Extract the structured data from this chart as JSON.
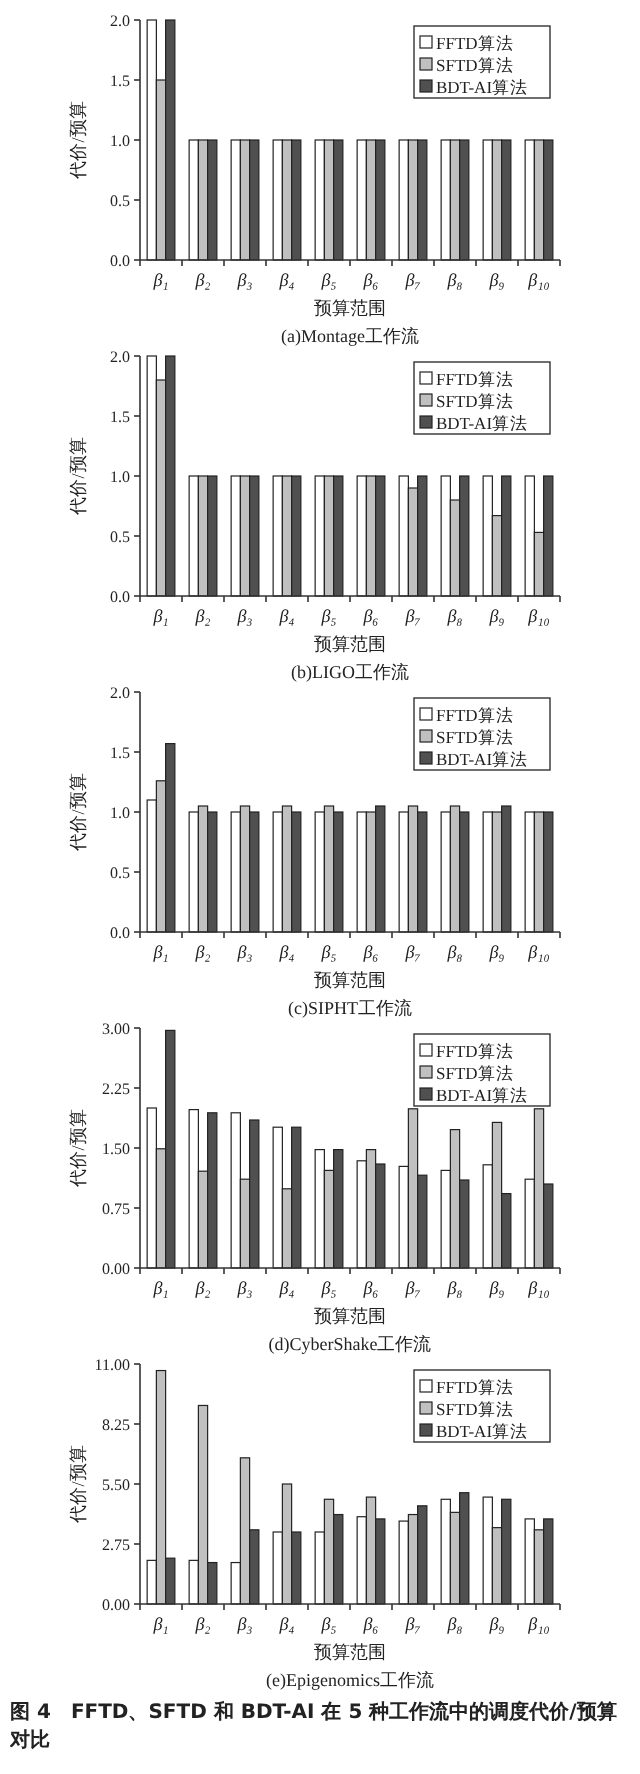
{
  "chart_data": [
    {
      "type": "bar",
      "title": "(a)Montage工作流",
      "xlabel": "预算范围",
      "ylabel": "代价/预算",
      "legend": "top right",
      "categories": [
        "β₁",
        "β₂",
        "β₃",
        "β₄",
        "β₅",
        "β₆",
        "β₇",
        "β₈",
        "β₉",
        "β₁₀"
      ],
      "ylim": [
        0,
        2
      ],
      "yticks": [
        {
          "value": 0,
          "label": "0.0"
        },
        {
          "value": 0.5,
          "label": "0.5"
        },
        {
          "value": 1,
          "label": "1.0"
        },
        {
          "value": 1.5,
          "label": "1.5"
        },
        {
          "value": 2,
          "label": "2.0"
        }
      ],
      "series": [
        {
          "name": "FFTD算法",
          "color": "#ffffff",
          "values": [
            2,
            1,
            1,
            1,
            1,
            1,
            1,
            1,
            1,
            1
          ]
        },
        {
          "name": "SFTD算法",
          "color": "#c0c0c0",
          "values": [
            1.5,
            1,
            1,
            1,
            1,
            1,
            1,
            1,
            1,
            1
          ]
        },
        {
          "name": "BDT-AI算法",
          "color": "#505050",
          "values": [
            2,
            1,
            1,
            1,
            1,
            1,
            1,
            1,
            1,
            1
          ]
        }
      ]
    },
    {
      "type": "bar",
      "title": "(b)LIGO工作流",
      "xlabel": "预算范围",
      "ylabel": "代价/预算",
      "legend": "top right",
      "categories": [
        "β₁",
        "β₂",
        "β₃",
        "β₄",
        "β₅",
        "β₆",
        "β₇",
        "β₈",
        "β₉",
        "β₁₀"
      ],
      "ylim": [
        0,
        2
      ],
      "yticks": [
        {
          "value": 0,
          "label": "0.0"
        },
        {
          "value": 0.5,
          "label": "0.5"
        },
        {
          "value": 1,
          "label": "1.0"
        },
        {
          "value": 1.5,
          "label": "1.5"
        },
        {
          "value": 2,
          "label": "2.0"
        }
      ],
      "series": [
        {
          "name": "FFTD算法",
          "color": "#ffffff",
          "values": [
            2,
            1,
            1,
            1,
            1,
            1,
            1,
            1,
            1,
            1
          ]
        },
        {
          "name": "SFTD算法",
          "color": "#c0c0c0",
          "values": [
            1.8,
            1,
            1,
            1,
            1,
            1,
            0.9,
            0.8,
            0.67,
            0.53
          ]
        },
        {
          "name": "BDT-AI算法",
          "color": "#505050",
          "values": [
            2,
            1,
            1,
            1,
            1,
            1,
            1,
            1,
            1,
            1
          ]
        }
      ]
    },
    {
      "type": "bar",
      "title": "(c)SIPHT工作流",
      "xlabel": "预算范围",
      "ylabel": "代价/预算",
      "legend": "top right",
      "categories": [
        "β₁",
        "β₂",
        "β₃",
        "β₄",
        "β₅",
        "β₆",
        "β₇",
        "β₈",
        "β₉",
        "β₁₀"
      ],
      "ylim": [
        0,
        2
      ],
      "yticks": [
        {
          "value": 0,
          "label": "0.0"
        },
        {
          "value": 0.5,
          "label": "0.5"
        },
        {
          "value": 1,
          "label": "1.0"
        },
        {
          "value": 1.5,
          "label": "1.5"
        },
        {
          "value": 2,
          "label": "2.0"
        }
      ],
      "series": [
        {
          "name": "FFTD算法",
          "color": "#ffffff",
          "values": [
            1.1,
            1,
            1,
            1,
            1,
            1,
            1,
            1,
            1,
            1
          ]
        },
        {
          "name": "SFTD算法",
          "color": "#c0c0c0",
          "values": [
            1.26,
            1.05,
            1.05,
            1.05,
            1.05,
            1,
            1.05,
            1.05,
            1,
            1
          ]
        },
        {
          "name": "BDT-AI算法",
          "color": "#505050",
          "values": [
            1.57,
            1,
            1,
            1,
            1,
            1.05,
            1,
            1,
            1.05,
            1
          ]
        }
      ]
    },
    {
      "type": "bar",
      "title": "(d)CyberShake工作流",
      "xlabel": "预算范围",
      "ylabel": "代价/预算",
      "legend": "top right",
      "categories": [
        "β₁",
        "β₂",
        "β₃",
        "β₄",
        "β₅",
        "β₆",
        "β₇",
        "β₈",
        "β₉",
        "β₁₀"
      ],
      "ylim": [
        0,
        3
      ],
      "yticks": [
        {
          "value": 0,
          "label": "0.00"
        },
        {
          "value": 0.75,
          "label": "0.75"
        },
        {
          "value": 1.5,
          "label": "1.50"
        },
        {
          "value": 2.25,
          "label": "2.25"
        },
        {
          "value": 3,
          "label": "3.00"
        }
      ],
      "series": [
        {
          "name": "FFTD算法",
          "color": "#ffffff",
          "values": [
            2.0,
            1.98,
            1.94,
            1.76,
            1.48,
            1.34,
            1.27,
            1.22,
            1.29,
            1.11
          ]
        },
        {
          "name": "SFTD算法",
          "color": "#c0c0c0",
          "values": [
            1.49,
            1.21,
            1.11,
            0.99,
            1.22,
            1.48,
            1.99,
            1.73,
            1.82,
            1.99
          ]
        },
        {
          "name": "BDT-AI算法",
          "color": "#505050",
          "values": [
            2.97,
            1.94,
            1.85,
            1.76,
            1.48,
            1.3,
            1.16,
            1.1,
            0.93,
            1.05
          ]
        }
      ]
    },
    {
      "type": "bar",
      "title": "(e)Epigenomics工作流",
      "xlabel": "预算范围",
      "ylabel": "代价/预算",
      "legend": "top right",
      "categories": [
        "β₁",
        "β₂",
        "β₃",
        "β₄",
        "β₅",
        "β₆",
        "β₇",
        "β₈",
        "β₉",
        "β₁₀"
      ],
      "ylim": [
        0,
        11
      ],
      "yticks": [
        {
          "value": 0,
          "label": "0.00"
        },
        {
          "value": 2.75,
          "label": "2.75"
        },
        {
          "value": 5.5,
          "label": "5.50"
        },
        {
          "value": 8.25,
          "label": "8.25"
        },
        {
          "value": 11,
          "label": "11.00"
        }
      ],
      "annotations": [
        "图 4　FFTD、SFTD 和 BDT-AI 在 5 种工作流中的调度代价/预算对比"
      ],
      "series": [
        {
          "name": "FFTD算法",
          "color": "#ffffff",
          "values": [
            2.0,
            2.0,
            1.9,
            3.3,
            3.3,
            4.0,
            3.8,
            4.8,
            4.9,
            3.9
          ]
        },
        {
          "name": "SFTD算法",
          "color": "#c0c0c0",
          "values": [
            10.7,
            9.1,
            6.7,
            5.5,
            4.8,
            4.9,
            4.1,
            4.2,
            3.5,
            3.4
          ]
        },
        {
          "name": "BDT-AI算法",
          "color": "#505050",
          "values": [
            2.1,
            1.9,
            3.4,
            3.3,
            4.1,
            3.9,
            4.5,
            5.1,
            4.8,
            3.9
          ]
        }
      ]
    }
  ]
}
